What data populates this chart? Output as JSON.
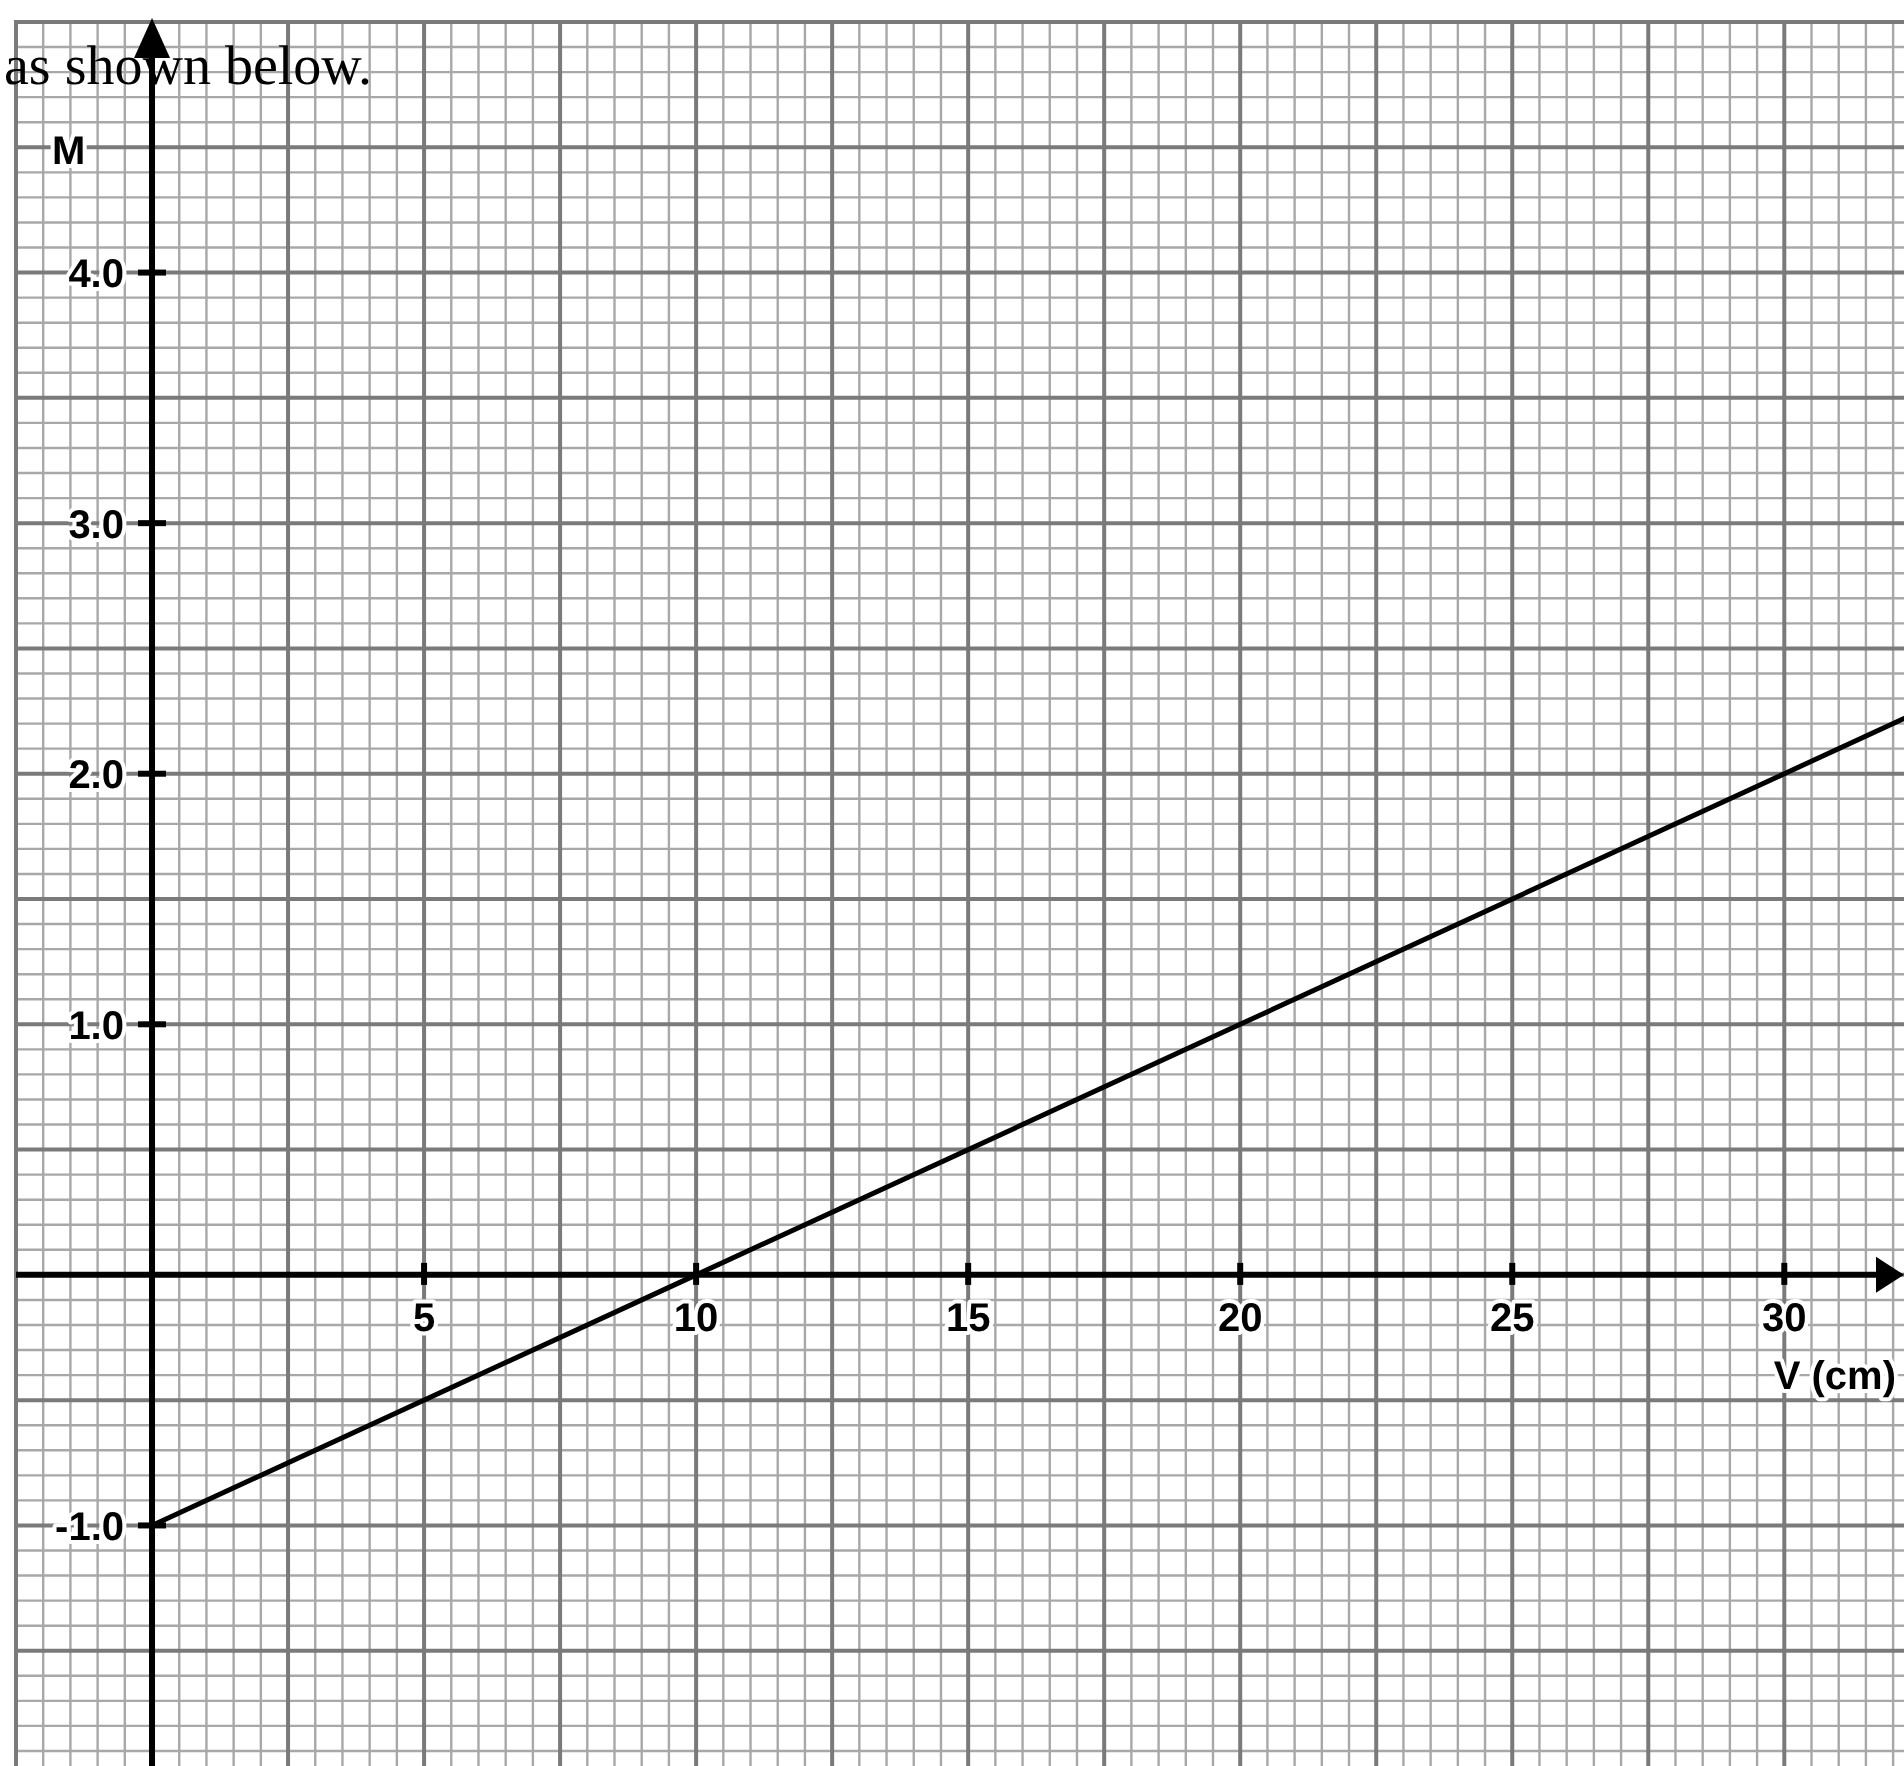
{
  "chart_data": {
    "type": "line",
    "xlabel": "V (cm)",
    "ylabel": "M",
    "annotations": [
      "as shown below."
    ],
    "x": [
      0,
      10,
      20,
      30,
      32.2
    ],
    "series": [
      {
        "color": "#000000",
        "values": [
          -1.0,
          0.0,
          1.0,
          2.0,
          2.22
        ]
      }
    ],
    "xlim": [
      -2.5,
      32.2
    ],
    "ylim": [
      -1.96,
      5.0
    ],
    "xticks": [
      5,
      10,
      15,
      20,
      25,
      30
    ],
    "yticks": [
      {
        "value": -1,
        "label": "-1.0"
      },
      {
        "value": 1,
        "label": "1.0"
      },
      {
        "value": 2,
        "label": "2.0"
      },
      {
        "value": 3,
        "label": "3.0"
      },
      {
        "value": 4,
        "label": "4.0"
      }
    ],
    "grid": true,
    "line_style": "solid"
  }
}
